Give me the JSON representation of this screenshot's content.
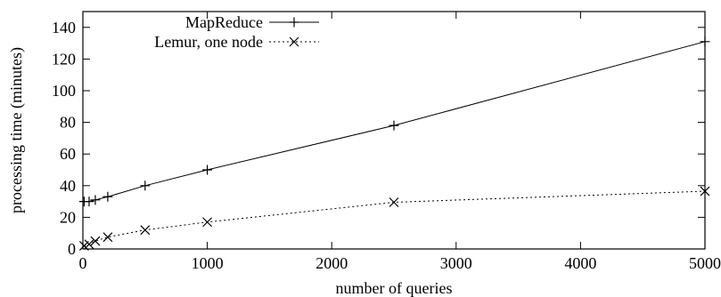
{
  "chart_data": {
    "type": "line",
    "title": "",
    "xlabel": "number of queries",
    "ylabel": "processing time (minutes)",
    "xlim": [
      0,
      5000
    ],
    "ylim": [
      0,
      150
    ],
    "x_ticks": [
      0,
      1000,
      2000,
      3000,
      4000,
      5000
    ],
    "y_ticks": [
      0,
      20,
      40,
      60,
      80,
      100,
      120,
      140
    ],
    "grid": false,
    "legend_position": "top-left",
    "series": [
      {
        "name": "MapReduce",
        "marker": "plus",
        "line_style": "solid",
        "x": [
          10,
          50,
          100,
          200,
          500,
          1000,
          2500,
          5000
        ],
        "y": [
          30,
          30,
          31,
          33,
          40,
          50,
          78,
          131
        ]
      },
      {
        "name": "Lemur, one node",
        "marker": "cross",
        "line_style": "dotted",
        "x": [
          10,
          50,
          100,
          200,
          500,
          1000,
          2500,
          5000
        ],
        "y": [
          2,
          3,
          5,
          7.5,
          12,
          17,
          29.5,
          36.5
        ]
      }
    ]
  }
}
